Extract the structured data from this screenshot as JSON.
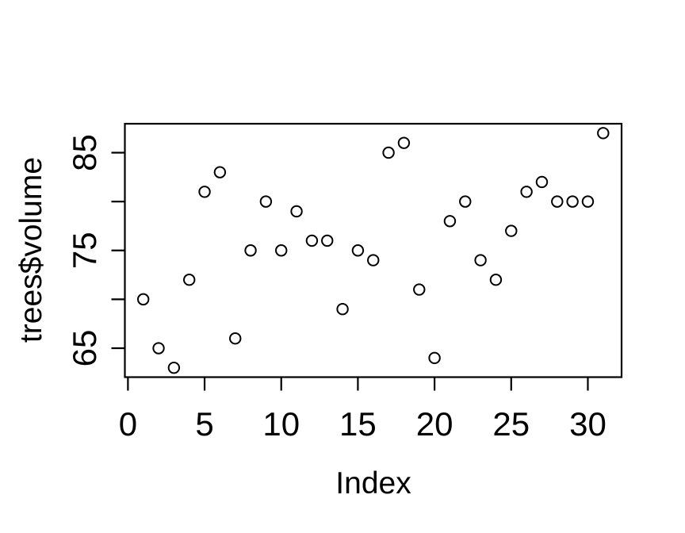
{
  "window": {
    "background_color": "#ffffff",
    "foreground_color": "#000000"
  },
  "chart_data": {
    "type": "scatter",
    "title": "",
    "xlabel": "Index",
    "ylabel": "trees$volume",
    "series": [
      {
        "name": "trees$volume",
        "x": [
          1,
          2,
          3,
          4,
          5,
          6,
          7,
          8,
          9,
          10,
          11,
          12,
          13,
          14,
          15,
          16,
          17,
          18,
          19,
          20,
          21,
          22,
          23,
          24,
          25,
          26,
          27,
          28,
          29,
          30,
          31
        ],
        "y": [
          70,
          65,
          63,
          72,
          81,
          83,
          66,
          75,
          80,
          75,
          79,
          76,
          76,
          69,
          75,
          74,
          85,
          86,
          71,
          64,
          78,
          80,
          74,
          72,
          77,
          81,
          82,
          80,
          80,
          80,
          87
        ]
      }
    ],
    "xlim": [
      -0.2,
      32.2
    ],
    "ylim": [
      62.04,
      87.96
    ],
    "x_ticks": [
      0,
      5,
      10,
      15,
      20,
      25,
      30
    ],
    "x_tick_labels": [
      "0",
      "5",
      "10",
      "15",
      "20",
      "25",
      "30"
    ],
    "y_ticks": [
      65,
      70,
      75,
      80,
      85
    ],
    "y_tick_labels": [
      "65",
      "",
      "75",
      "",
      "85"
    ],
    "grid": false,
    "legend_position": "none",
    "marker": {
      "shape": "open-circle",
      "stroke_color": "#000000",
      "fill": "none"
    },
    "axis_color": "#000000"
  }
}
